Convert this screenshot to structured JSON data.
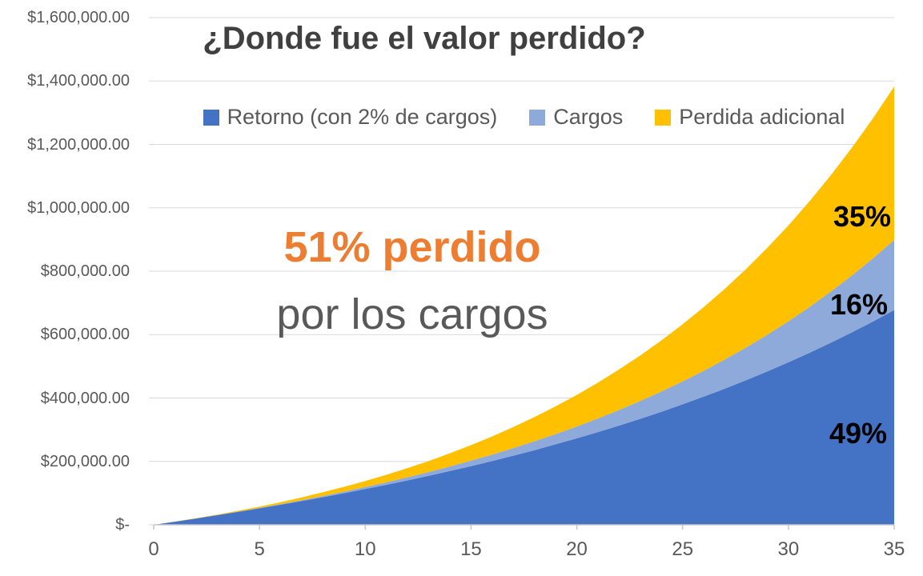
{
  "chart": {
    "title": "¿Donde fue el valor perdido?",
    "annotations": [
      {
        "text": "51% perdido",
        "color": "#ED7D31"
      },
      {
        "text": "por los cargos",
        "color": "#595959"
      }
    ]
  },
  "chart_data": {
    "type": "area",
    "stacked": true,
    "title": "¿Donde fue el valor perdido?",
    "xlabel": "",
    "ylabel": "",
    "x": [
      0,
      1,
      2,
      3,
      4,
      5,
      6,
      7,
      8,
      9,
      10,
      11,
      12,
      13,
      14,
      15,
      16,
      17,
      18,
      19,
      20,
      21,
      22,
      23,
      24,
      25,
      26,
      27,
      28,
      29,
      30,
      31,
      32,
      33,
      34,
      35
    ],
    "xlim": [
      0,
      35
    ],
    "ylim": [
      0,
      1600000
    ],
    "x_ticks": [
      0,
      5,
      10,
      15,
      20,
      25,
      30,
      35
    ],
    "y_tick_values": [
      0,
      200000,
      400000,
      600000,
      800000,
      1000000,
      1200000,
      1400000,
      1600000
    ],
    "y_tick_labels": [
      "$-",
      "$200,000.00",
      "$400,000.00",
      "$600,000.00",
      "$800,000.00",
      "$1,000,000.00",
      "$1,200,000.00",
      "$1,400,000.00",
      "$1,600,000.00"
    ],
    "grid": true,
    "legend_position": "top",
    "series": [
      {
        "name": "Retorno (con 2% de cargos)",
        "slug": "retorno",
        "color": "#4472C4",
        "final_share_label": "49%",
        "values": [
          0,
          9798,
          19873,
          30242,
          40923,
          51935,
          63299,
          75033,
          87161,
          99705,
          112688,
          126135,
          140070,
          154524,
          169524,
          185095,
          201274,
          218090,
          235576,
          253770,
          272706,
          292427,
          312970,
          334376,
          356701,
          379976,
          404259,
          429594,
          456039,
          483655,
          512497,
          542620,
          574102,
          607004,
          641384,
          677361
        ]
      },
      {
        "name": "Cargos",
        "slug": "cargos",
        "color": "#8EAADB",
        "final_share_label": "16%",
        "values": [
          0,
          46,
          189,
          441,
          812,
          1314,
          1962,
          2769,
          3752,
          4928,
          6316,
          7937,
          9813,
          11969,
          14432,
          17231,
          20398,
          23967,
          27976,
          32466,
          37482,
          43071,
          49286,
          56184,
          63828,
          72285,
          81625,
          91934,
          103293,
          115796,
          129546,
          144652,
          161233,
          179424,
          199351,
          221179
        ]
      },
      {
        "name": "Perdida adicional",
        "slug": "perdida-adicional",
        "color": "#FFC000",
        "final_share_label": "35%",
        "values": [
          0,
          156,
          638,
          1466,
          2664,
          4258,
          6272,
          8738,
          11685,
          15147,
          19160,
          23764,
          29002,
          34913,
          41549,
          48964,
          57209,
          66345,
          76438,
          87554,
          99767,
          113154,
          127801,
          143801,
          161238,
          180229,
          200881,
          223310,
          247645,
          274014,
          302565,
          333458,
          366847,
          402906,
          441853,
          483829
        ]
      }
    ],
    "segment_labels": [
      {
        "text": "35%",
        "series": "perdida-adicional"
      },
      {
        "text": "16%",
        "series": "cargos"
      },
      {
        "text": "49%",
        "series": "retorno"
      }
    ],
    "colors": {
      "gridline": "#D9D9D9",
      "axis": "#C6C6C6",
      "tick_text": "#595959",
      "title_text": "#404040",
      "segment_text": "#000000",
      "background": "#FFFFFF"
    }
  }
}
